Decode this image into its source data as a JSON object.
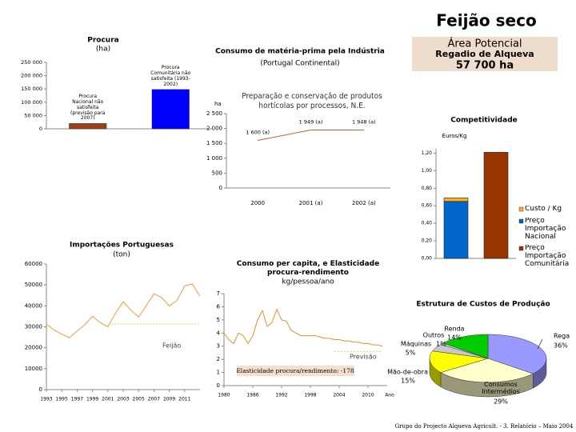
{
  "title": "Feijão seco",
  "highlight": {
    "label": "Área Potencial",
    "sublabel": "Regadio de Alqueva",
    "value": "57 700 ha"
  },
  "footer": "Grupo do Projecto Alqueva Agricult. - 3. Relatório – Maio 2004",
  "chart_data": [
    {
      "type": "bar",
      "title": "Procura",
      "subtitle": "(ha)",
      "categories": [
        "Procura Nacional não satisfeita (previsão para 2007)",
        "Procura Comunitária não satisfeita (1993-2002)"
      ],
      "values": [
        20000,
        148000
      ],
      "colors": [
        "#a0401a",
        "#0000ff"
      ],
      "ylim": [
        0,
        250000
      ],
      "yticks": [
        0,
        {
          "value": 50000,
          "label": "50 000"
        },
        {
          "value": 100000,
          "label": "100 000"
        },
        {
          "value": 150000,
          "label": "150 000"
        },
        {
          "value": 200000,
          "label": "200 000"
        },
        {
          "value": 250000,
          "label": "250 000"
        }
      ]
    },
    {
      "type": "line",
      "title": "Consumo de matéria-prima pela Indústria",
      "subtitle": "(Portugal Continental)",
      "inner_title": "Preparação e conservação de produtos hortícolas por processos, N.E.",
      "y_label": "ha",
      "categories": [
        "2000",
        "2001 (a)",
        "2002 (a)"
      ],
      "values": [
        1600,
        1949,
        1948
      ],
      "value_labels": [
        "1 600 (a)",
        "1 949 (a)",
        "1 948 (a)"
      ],
      "color": "#c0603a",
      "ylim": [
        0,
        2500
      ],
      "yticks": [
        0,
        500,
        {
          "value": 1000,
          "label": "1 000"
        },
        {
          "value": 1500,
          "label": "1 500"
        },
        {
          "value": 2000,
          "label": "2 000"
        },
        {
          "value": 2500,
          "label": "2 500"
        }
      ]
    },
    {
      "type": "line",
      "title": "Importações Portuguesas",
      "subtitle": "(ton)",
      "x": [
        1993,
        1994,
        1995,
        1996,
        1997,
        1998,
        1999,
        2000,
        2001,
        2002,
        2003,
        2004,
        2005,
        2006,
        2007,
        2008,
        2009,
        2010,
        2011,
        2012,
        2013
      ],
      "series": [
        {
          "name": "Feijão",
          "color": "#f0a030",
          "values": [
            31300,
            28500,
            26500,
            24800,
            28000,
            31000,
            35000,
            32000,
            30000,
            36500,
            42000,
            38000,
            34700,
            40000,
            45800,
            44000,
            40000,
            42500,
            49600,
            50400,
            44600
          ]
        },
        {
          "color": "#f5c060",
          "dashed": true,
          "values": [
            null,
            null,
            null,
            null,
            null,
            null,
            null,
            null,
            31300,
            31300,
            31300,
            31300,
            31300,
            31300,
            31300,
            31300,
            31300,
            31300,
            31300,
            31300,
            31300
          ]
        }
      ],
      "xlim": [
        1993,
        2013
      ],
      "xticks": [
        1993,
        1995,
        1997,
        1999,
        2001,
        2003,
        2005,
        2007,
        2009,
        2011
      ],
      "ylim": [
        0,
        60000
      ],
      "yticks": [
        0,
        10000,
        20000,
        30000,
        40000,
        50000,
        60000
      ]
    },
    {
      "type": "line",
      "title": "Consumo per capita, e Elasticidade procura-rendimento",
      "subtitle": "kg/pessoa/ano",
      "x_label": "Ano",
      "annotation": "Elasticidade procura/rendimento: -178",
      "x": [
        1980,
        1981,
        1982,
        1983,
        1984,
        1985,
        1986,
        1987,
        1988,
        1989,
        1990,
        1991,
        1992,
        1993,
        1994,
        1995,
        1996,
        1997,
        1998,
        1999,
        2000,
        2001,
        2002,
        2003,
        2004,
        2005,
        2006,
        2007,
        2008,
        2009,
        2010,
        2011,
        2012,
        2013
      ],
      "series": [
        {
          "color": "#e8902a",
          "values": [
            4.0,
            3.5,
            3.2,
            4.0,
            3.8,
            3.2,
            3.8,
            5.0,
            5.7,
            4.5,
            4.8,
            5.8,
            5.0,
            4.9,
            4.2,
            4.0,
            3.8,
            3.8,
            3.8,
            3.8,
            3.7,
            3.6,
            3.6,
            3.5,
            3.5,
            3.4,
            3.4,
            3.3,
            3.3,
            3.2,
            3.2,
            3.1,
            3.1,
            3.0
          ]
        },
        {
          "name": "Previsão",
          "color": "#f5c060",
          "dashed": true,
          "values": [
            null,
            null,
            null,
            null,
            null,
            null,
            null,
            null,
            null,
            null,
            null,
            null,
            null,
            null,
            null,
            null,
            null,
            null,
            null,
            null,
            null,
            null,
            null,
            2.6,
            2.6,
            2.6,
            2.6,
            2.6,
            2.6,
            2.6,
            2.6,
            2.6,
            2.6,
            2.6
          ]
        }
      ],
      "xlim": [
        1980,
        2014
      ],
      "xticks": [
        1980,
        1986,
        1992,
        1998,
        2004,
        2010
      ],
      "ylim": [
        0,
        7
      ],
      "yticks": [
        0,
        1,
        2,
        3,
        4,
        5,
        6,
        7
      ]
    },
    {
      "type": "stacked_bar",
      "title": "Competitividade",
      "y_label": "Euros/Kg",
      "categories": [
        null,
        null
      ],
      "series": [
        {
          "name": "Preço Importação Comunitária",
          "color": "#993300",
          "values": [
            null,
            1.21
          ]
        },
        {
          "name": "Preço Importação Nacional",
          "color": "#0066cc",
          "values": [
            0.65,
            null
          ]
        },
        {
          "name": "Custo / Kg",
          "color": "#ffb020",
          "values": [
            0.04,
            null
          ]
        }
      ],
      "ylim": [
        0,
        1.25
      ],
      "yticks": [
        {
          "value": 0,
          "label": "0,00"
        },
        {
          "value": 0.2,
          "label": "0,20"
        },
        {
          "value": 0.4,
          "label": "0,40"
        },
        {
          "value": 0.6,
          "label": "0,60"
        },
        {
          "value": 0.8,
          "label": "0,80"
        },
        {
          "value": 1,
          "label": "1,00"
        },
        {
          "value": 1.2,
          "label": "1,20"
        }
      ]
    },
    {
      "type": "pie",
      "title": "Estrutura de Custos de Produção",
      "categories": [
        "Rega",
        "Consumos Intermédios",
        "Mão-de-obra",
        "Máquinas",
        "Outros",
        "Renda"
      ],
      "values": [
        36,
        29,
        15,
        5,
        1,
        14
      ],
      "value_labels": [
        "36%",
        "29%",
        "15%",
        "5%",
        "1%",
        "14%"
      ],
      "colors": [
        "#9999ff",
        "#ffffcc",
        "#ffff00",
        "#c8c8c8",
        "#e0e0e0",
        "#00cc00"
      ]
    }
  ]
}
